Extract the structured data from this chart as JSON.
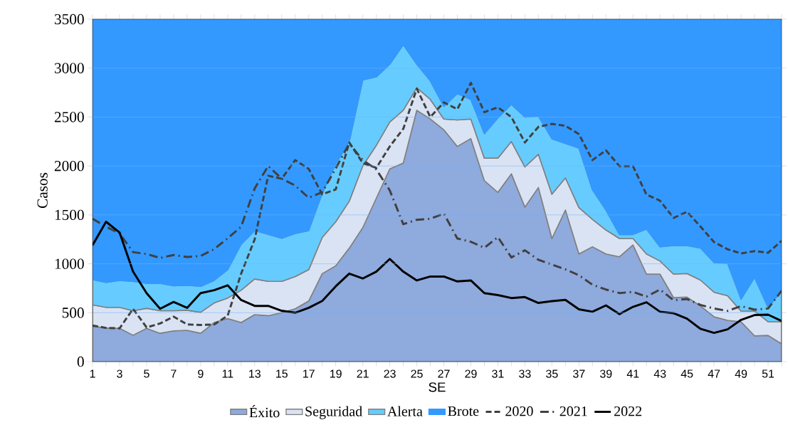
{
  "chart_data": {
    "type": "area",
    "xlabel": "SE",
    "ylabel": "Casos",
    "x": [
      1,
      2,
      3,
      4,
      5,
      6,
      7,
      8,
      9,
      10,
      11,
      12,
      13,
      14,
      15,
      16,
      17,
      18,
      19,
      20,
      21,
      22,
      23,
      24,
      25,
      26,
      27,
      28,
      29,
      30,
      31,
      32,
      33,
      34,
      35,
      36,
      37,
      38,
      39,
      40,
      41,
      42,
      43,
      44,
      45,
      46,
      47,
      48,
      49,
      50,
      51,
      52
    ],
    "xlim": [
      1,
      52
    ],
    "xticks": [
      1,
      {
        "value": 2,
        "label": null
      },
      3,
      {
        "value": 4,
        "label": null
      },
      5,
      {
        "value": 6,
        "label": null
      },
      7,
      {
        "value": 8,
        "label": null
      },
      9,
      {
        "value": 10,
        "label": null
      },
      11,
      {
        "value": 12,
        "label": null
      },
      13,
      {
        "value": 14,
        "label": null
      },
      15,
      {
        "value": 16,
        "label": null
      },
      17,
      {
        "value": 18,
        "label": null
      },
      19,
      {
        "value": 20,
        "label": null
      },
      21,
      {
        "value": 22,
        "label": null
      },
      23,
      {
        "value": 24,
        "label": null
      },
      25,
      {
        "value": 26,
        "label": null
      },
      27,
      {
        "value": 28,
        "label": null
      },
      29,
      {
        "value": 30,
        "label": null
      },
      31,
      {
        "value": 32,
        "label": null
      },
      33,
      {
        "value": 34,
        "label": null
      },
      35,
      {
        "value": 36,
        "label": null
      },
      37,
      {
        "value": 38,
        "label": null
      },
      39,
      {
        "value": 40,
        "label": null
      },
      41,
      {
        "value": 42,
        "label": null
      },
      43,
      {
        "value": 44,
        "label": null
      },
      45,
      {
        "value": 46,
        "label": null
      },
      47,
      {
        "value": 48,
        "label": null
      },
      49,
      {
        "value": 50,
        "label": null
      },
      51,
      {
        "value": 52,
        "label": null
      }
    ],
    "ylim": [
      0,
      3500
    ],
    "yticks": [
      0,
      500,
      1000,
      1500,
      2000,
      2500,
      3000,
      3500
    ],
    "grid": "y",
    "legend": "bottom",
    "marker": "none",
    "stacked": true,
    "series": [
      {
        "name": "Éxito",
        "color": "#8faadc",
        "values": [
          360,
          345,
          340,
          270,
          340,
          290,
          315,
          320,
          290,
          400,
          440,
          400,
          480,
          470,
          500,
          540,
          620,
          900,
          980,
          1160,
          1370,
          1670,
          1970,
          2030,
          2570,
          2480,
          2370,
          2200,
          2280,
          1850,
          1730,
          1920,
          1580,
          1780,
          1259,
          1550,
          1101,
          1174,
          1101,
          1072,
          1193,
          895,
          895,
          655,
          660,
          568,
          459,
          422,
          408,
          264,
          268,
          182
        ]
      },
      {
        "name": "Seguridad",
        "color": "#dae3f3",
        "values": [
          220,
          210,
          215,
          250,
          205,
          230,
          205,
          205,
          215,
          200,
          210,
          330,
          365,
          350,
          320,
          330,
          320,
          370,
          450,
          480,
          630,
          540,
          480,
          540,
          230,
          200,
          110,
          270,
          200,
          230,
          350,
          330,
          410,
          340,
          452,
          328,
          473,
          281,
          245,
          187,
          66,
          206,
          134,
          240,
          240,
          265,
          251,
          252,
          109,
          253,
          140,
          226
        ]
      },
      {
        "name": "Alerta",
        "color": "#66ccff",
        "values": [
          260,
          255,
          275,
          300,
          255,
          280,
          255,
          255,
          265,
          230,
          290,
          470,
          495,
          480,
          440,
          440,
          400,
          450,
          590,
          610,
          880,
          700,
          590,
          670,
          240,
          190,
          130,
          270,
          200,
          250,
          410,
          380,
          510,
          390,
          567,
          352,
          609,
          301,
          204,
          41,
          41,
          255,
          145,
          291,
          286,
          328,
          304,
          333,
          121,
          344,
          145,
          315
        ]
      },
      {
        "name": "Brote",
        "color": "#3399ff",
        "values": [
          2660,
          2690,
          2670,
          2680,
          2700,
          2700,
          2725,
          2720,
          2730,
          2670,
          2560,
          2300,
          2160,
          2200,
          2240,
          2190,
          2160,
          1780,
          1480,
          1250,
          620,
          590,
          460,
          260,
          460,
          630,
          890,
          760,
          820,
          1170,
          1010,
          870,
          1000,
          990,
          1222,
          1270,
          1317,
          1744,
          1950,
          2200,
          2200,
          2144,
          2326,
          2314,
          2314,
          2339,
          2486,
          2493,
          2862,
          2639,
          2947,
          2777
        ]
      },
      {
        "name": "2020",
        "type": "line",
        "color": "#404040",
        "line_style": "dashed",
        "values": [
          370,
          345,
          340,
          540,
          350,
          390,
          460,
          380,
          375,
          380,
          470,
          900,
          1250,
          1900,
          1870,
          2060,
          1970,
          1710,
          1760,
          2240,
          2030,
          1980,
          2200,
          2380,
          2790,
          2500,
          2650,
          2580,
          2850,
          2550,
          2600,
          2500,
          2240,
          2400,
          2430,
          2410,
          2325,
          2060,
          2160,
          1998,
          1998,
          1707,
          1646,
          1469,
          1532,
          1380,
          1222,
          1149,
          1106,
          1130,
          1113,
          1235
        ]
      },
      {
        "name": "2021",
        "type": "line",
        "color": "#404040",
        "line_style": "dashdot",
        "values": [
          1460,
          1380,
          1310,
          1120,
          1100,
          1060,
          1090,
          1070,
          1080,
          1150,
          1260,
          1380,
          1770,
          2000,
          1870,
          1800,
          1674,
          1732,
          1975,
          2230,
          2060,
          1965,
          1750,
          1405,
          1450,
          1460,
          1514,
          1259,
          1225,
          1164,
          1273,
          1065,
          1138,
          1041,
          992,
          944,
          883,
          786,
          737,
          701,
          713,
          665,
          737,
          628,
          640,
          580,
          543,
          519,
          568,
          531,
          543,
          725
        ]
      },
      {
        "name": "2022",
        "type": "line",
        "color": "#000000",
        "line_style": "solid",
        "values": [
          1190,
          1430,
          1320,
          920,
          700,
          540,
          610,
          550,
          700,
          730,
          780,
          630,
          570,
          570,
          520,
          500,
          550,
          620,
          770,
          900,
          850,
          920,
          1050,
          920,
          830,
          870,
          870,
          820,
          830,
          700,
          680,
          650,
          660,
          600,
          619,
          631,
          535,
          510,
          575,
          486,
          560,
          607,
          510,
          495,
          439,
          335,
          294,
          330,
          427,
          476,
          480,
          415
        ]
      }
    ]
  }
}
